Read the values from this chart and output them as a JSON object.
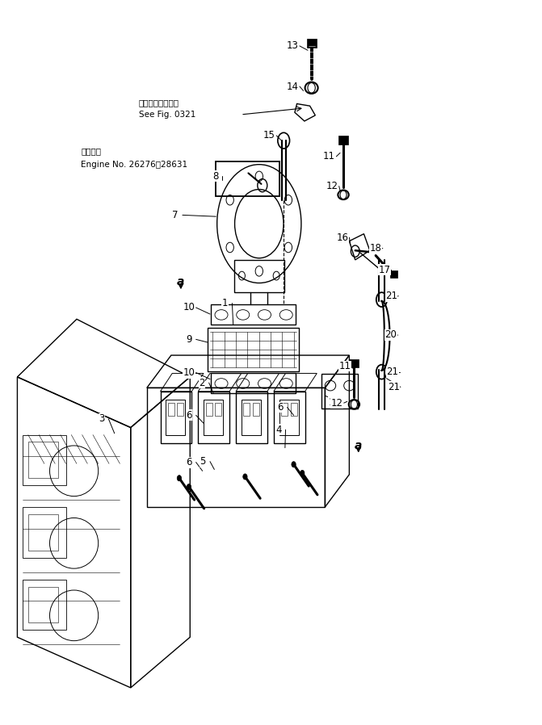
{
  "bg_color": "#ffffff",
  "line_color": "#000000",
  "fig_width": 6.71,
  "fig_height": 8.98,
  "dpi": 100,
  "annotations": {
    "japanese_text": "第０３２１図参照",
    "see_fig": "See Fig. 0321",
    "applicable_jp": "適用号機",
    "engine_no": "Engine No. 26276～28631"
  }
}
